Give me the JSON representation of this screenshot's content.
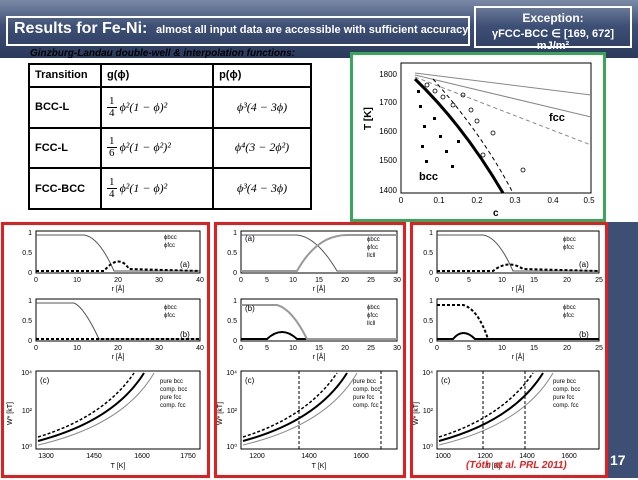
{
  "header": {
    "title": "Results for Fe-Ni:",
    "subtitle": "almost all input data are accessible with sufficient accuracy"
  },
  "exception": {
    "title": "Exception:",
    "body": "γFCC-BCC ∈ [169, 672] mJ/m²"
  },
  "table": {
    "caption": "Ginzburg-Landau double-well & interpolation functions:",
    "headers": [
      "Transition",
      "g(ϕ)",
      "p(ϕ)"
    ],
    "rows": [
      {
        "transition": "BCC-L",
        "g_num": "1",
        "g_den": "4",
        "g_expr": "ϕ²(1 − ϕ)²",
        "p": "ϕ³(4 − 3ϕ)"
      },
      {
        "transition": "FCC-L",
        "g_num": "1",
        "g_den": "6",
        "g_expr": "ϕ²(1 − ϕ²)²",
        "p": "ϕ⁴(3 − 2ϕ²)"
      },
      {
        "transition": "FCC-BCC",
        "g_num": "1",
        "g_den": "4",
        "g_expr": "ϕ²(1 − ϕ)²",
        "p": "ϕ³(4 − 3ϕ)"
      }
    ]
  },
  "phase_diagram": {
    "ylabel": "T [K]",
    "xlabel": "c",
    "label_bcc": "bcc",
    "label_fcc": "fcc",
    "xticks": [
      "0",
      "0.1",
      "0.2",
      "0.3",
      "0.4",
      "0.5"
    ],
    "yticks": [
      "1400",
      "1500",
      "1600",
      "1700",
      "1800"
    ]
  },
  "panels": {
    "p1": {
      "a": {
        "label": "(a)",
        "xlabel": "r [Å]",
        "xticks": [
          "0",
          "10",
          "20",
          "30",
          "40"
        ],
        "yticks": [
          "0",
          "0.5",
          "1"
        ],
        "legend": [
          "ϕbcc",
          "ϕfcc"
        ]
      },
      "b": {
        "label": "(b)",
        "xlabel": "r [Å]",
        "xticks": [
          "0",
          "10",
          "20",
          "30",
          "40"
        ],
        "yticks": [
          "0",
          "0.5",
          "1"
        ],
        "legend": [
          "ϕbcc",
          "ϕfcc"
        ]
      },
      "c": {
        "label": "(c)",
        "xlabel": "T [K]",
        "ylabel": "W* [kT]",
        "xticks": [
          "1300",
          "1450",
          "1600",
          "1750"
        ],
        "yticks": [
          "10⁰",
          "10²",
          "10⁴"
        ],
        "legend": [
          "pure bcc",
          "comp. bcc",
          "pure fcc",
          "comp. fcc"
        ]
      }
    },
    "p2": {
      "a": {
        "label": "(a)",
        "xlabel": "r [Å]",
        "xticks": [
          "0",
          "5",
          "10",
          "15",
          "20",
          "25",
          "30"
        ],
        "yticks": [
          "0",
          "0.5",
          "1"
        ],
        "legend": [
          "ϕbcc",
          "ϕfcc",
          "llcll"
        ]
      },
      "b": {
        "label": "(b)",
        "xlabel": "r [Å]",
        "xticks": [
          "0",
          "5",
          "10",
          "15",
          "20",
          "25",
          "30"
        ],
        "yticks": [
          "0",
          "0.5",
          "1"
        ],
        "legend": [
          "ϕbcc",
          "ϕfcc",
          "llcll"
        ]
      },
      "c": {
        "label": "(c)",
        "xlabel": "T [K]",
        "ylabel": "W* [kT]",
        "xticks": [
          "1200",
          "1400",
          "1600"
        ],
        "yticks": [
          "10⁰",
          "10²",
          "10⁴"
        ],
        "legend": [
          "pure bcc",
          "comp. bcc",
          "pure fcc",
          "comp. fcc"
        ]
      }
    },
    "p3": {
      "a": {
        "label": "(a)",
        "xlabel": "r [Å]",
        "xticks": [
          "0",
          "5",
          "10",
          "15",
          "20",
          "25"
        ],
        "yticks": [
          "0",
          "0.5",
          "1"
        ],
        "legend": [
          "ϕbcc",
          "ϕfcc"
        ]
      },
      "b": {
        "label": "(b)",
        "xlabel": "r [Å]",
        "xticks": [
          "0",
          "5",
          "10",
          "15",
          "20",
          "25"
        ],
        "yticks": [
          "0",
          "0.5",
          "1"
        ],
        "legend": [
          "ϕbcc",
          "ϕfcc"
        ]
      },
      "c": {
        "label": "(c)",
        "xlabel": "T [K]",
        "ylabel": "W* [kT]",
        "xticks": [
          "1000",
          "1200",
          "1400",
          "1600"
        ],
        "yticks": [
          "10⁰",
          "10²",
          "10⁴"
        ],
        "legend": [
          "pure bcc",
          "comp. bcc",
          "pure fcc",
          "comp. fcc"
        ]
      }
    }
  },
  "citation": "(Tóth at al. PRL 2011)",
  "page_number": "17"
}
